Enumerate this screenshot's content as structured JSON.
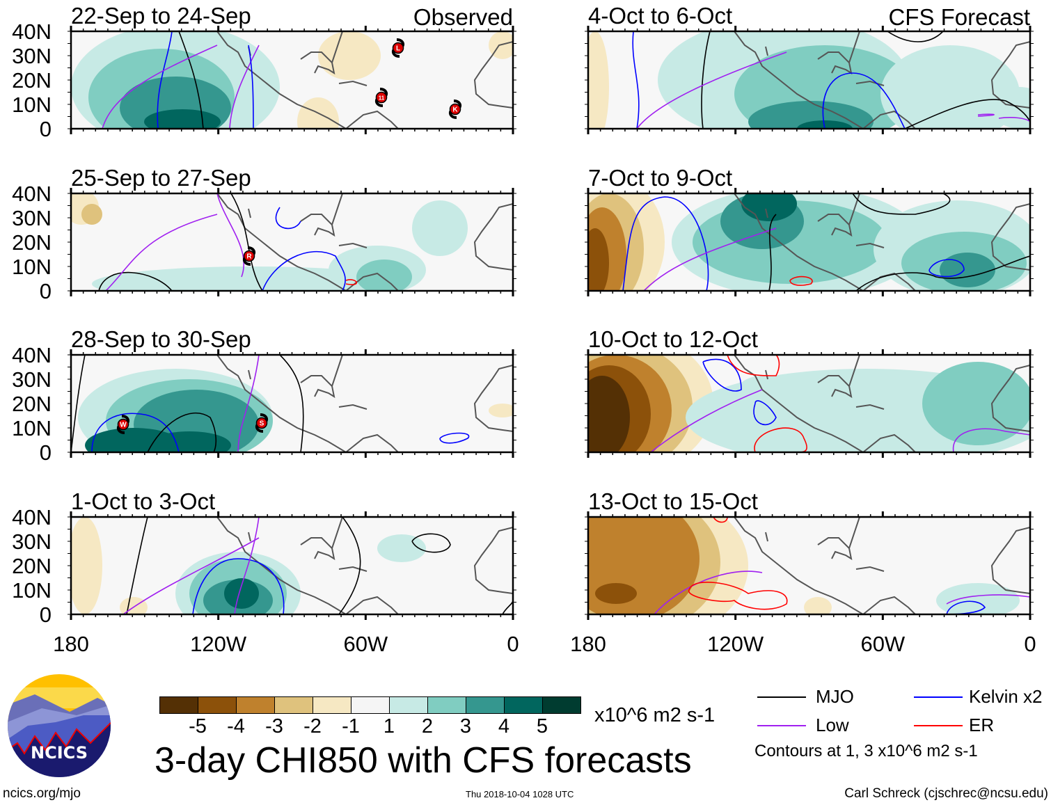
{
  "panels": [
    {
      "title": "22-Sep to 24-Sep",
      "tag": "Observed",
      "storms": [
        "L",
        "11",
        "K"
      ]
    },
    {
      "title": "4-Oct to 6-Oct",
      "tag": "CFS Forecast",
      "storms": []
    },
    {
      "title": "25-Sep to 27-Sep",
      "storms": [
        "R"
      ]
    },
    {
      "title": "7-Oct to 9-Oct",
      "storms": []
    },
    {
      "title": "28-Sep to 30-Sep",
      "storms": [
        "W",
        "S"
      ]
    },
    {
      "title": "10-Oct to 12-Oct",
      "storms": []
    },
    {
      "title": "1-Oct to 3-Oct",
      "storms": []
    },
    {
      "title": "13-Oct to 15-Oct",
      "storms": []
    }
  ],
  "lat_labels": [
    "40N",
    "30N",
    "20N",
    "10N",
    "0"
  ],
  "lon_labels": [
    "180",
    "120W",
    "60W",
    "0"
  ],
  "colorbar": {
    "colors": [
      "#543005",
      "#8c510a",
      "#bf812d",
      "#dfc27d",
      "#f6e8c3",
      "#f5f5f5",
      "#c7eae5",
      "#80cdc1",
      "#35978f",
      "#01665e",
      "#003c30"
    ],
    "labels": [
      "-5",
      "-4",
      "-3",
      "-2",
      "-1",
      "1",
      "2",
      "3",
      "4",
      "5"
    ],
    "units": "x10^6 m2 s-1"
  },
  "title": "3-day CHI850 with CFS forecasts",
  "legend": {
    "items": [
      {
        "label": "MJO",
        "color": "#000000"
      },
      {
        "label": "Kelvin x2",
        "color": "#0000ff"
      },
      {
        "label": "Low",
        "color": "#a020f0"
      },
      {
        "label": "ER",
        "color": "#ff0000"
      }
    ],
    "contours": "Contours at 1, 3 x10^6 m2 s-1"
  },
  "logo_text": "NCICS",
  "footer": {
    "left": "ncics.org/mjo",
    "center": "Thu 2018-10-04 1028 UTC",
    "right": "Carl Schreck (cjschrec@ncsu.edu)"
  }
}
